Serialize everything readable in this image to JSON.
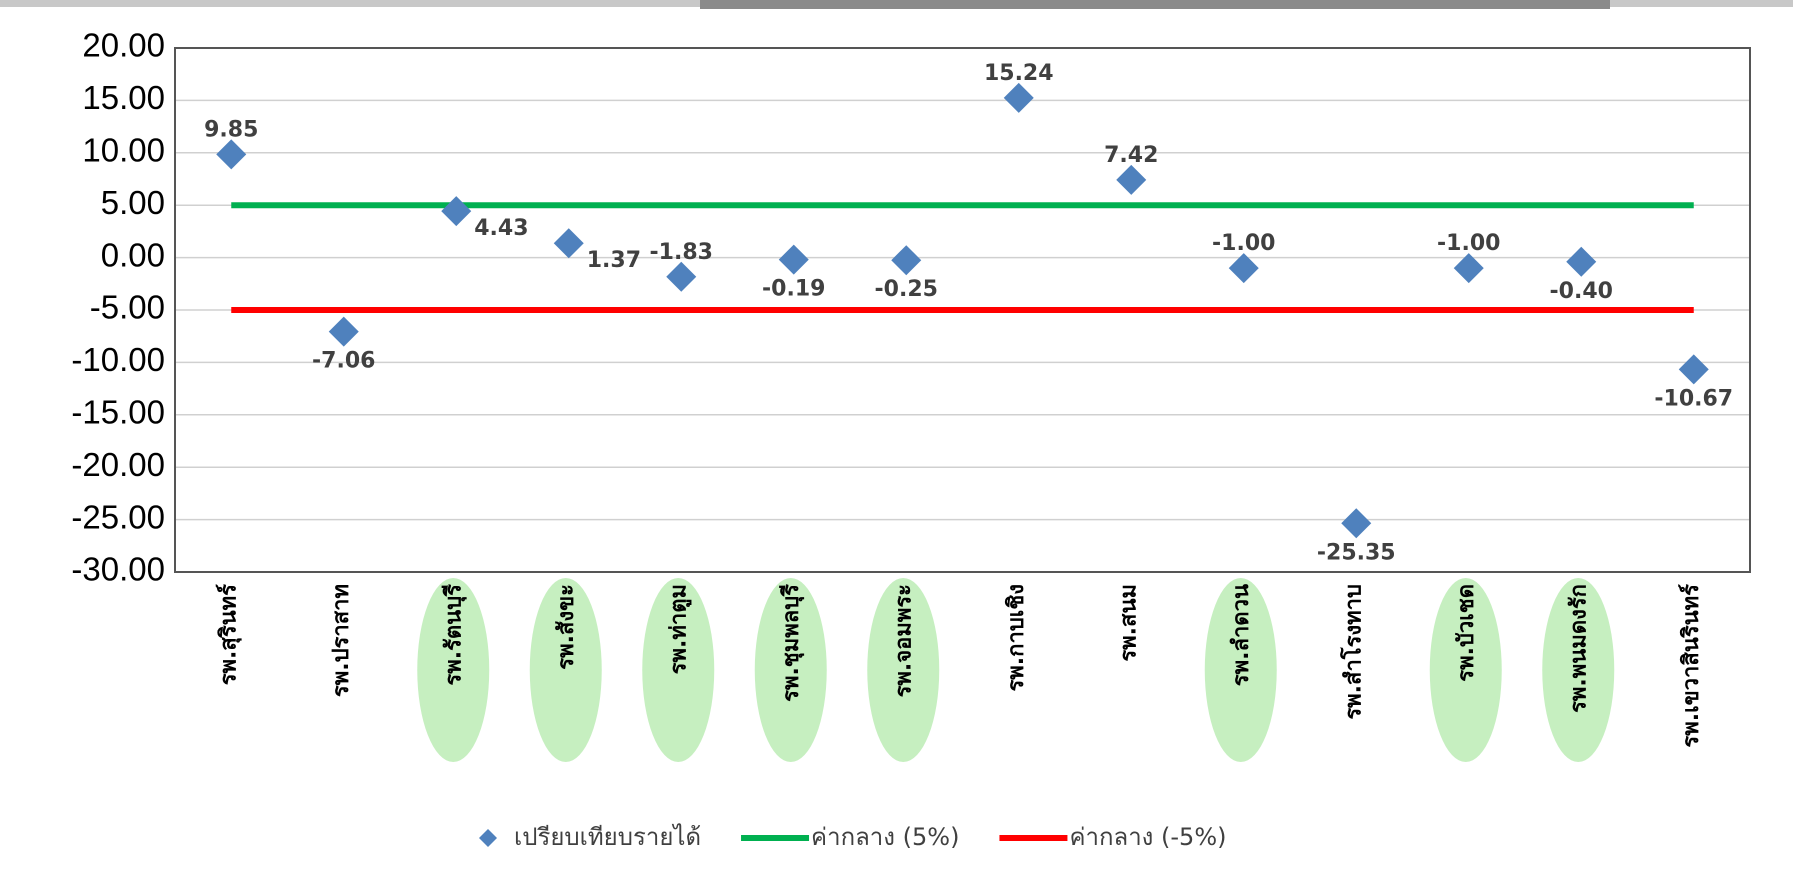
{
  "chart_data": {
    "type": "scatter",
    "categories": [
      "รพ.สุรินทร์",
      "รพ.ปราสาท",
      "รพ.รัตนบุรี",
      "รพ.สังขะ",
      "รพ.ท่าตูม",
      "รพ.ชุมพลบุรี",
      "รพ.จอมพระ",
      "รพ.กาบเชิง",
      "รพ.สนม",
      "รพ.ลำดวน",
      "รพ.สำโรงทาบ",
      "รพ.บัวเชด",
      "รพ.พนมดงรัก",
      "รพ.เขวาสินรินทร์"
    ],
    "series": [
      {
        "name": "เปรียบเทียบรายได้",
        "color": "#4f81bd",
        "marker": "diamond",
        "values": [
          9.85,
          -7.06,
          4.43,
          1.37,
          -1.83,
          -0.19,
          -0.25,
          15.24,
          7.42,
          -1.0,
          -25.35,
          -1.0,
          -0.4,
          -10.67
        ],
        "value_labels": [
          "9.85",
          "-7.06",
          "4.43",
          "1.37",
          "-1.83",
          "-0.19",
          "-0.25",
          "15.24",
          "7.42",
          "-1.00",
          "-25.35",
          "-1.00",
          "-0.40",
          "-10.67"
        ]
      },
      {
        "name": "ค่ากลาง (5%)",
        "color": "#00b050",
        "marker": "line",
        "values": [
          5,
          5,
          5,
          5,
          5,
          5,
          5,
          5,
          5,
          5,
          5,
          5,
          5,
          5
        ]
      },
      {
        "name": "ค่ากลาง (-5%)",
        "color": "#ff0000",
        "marker": "line",
        "values": [
          -5,
          -5,
          -5,
          -5,
          -5,
          -5,
          -5,
          -5,
          -5,
          -5,
          -5,
          -5,
          -5,
          -5
        ]
      }
    ],
    "ylim": [
      -30,
      20
    ],
    "yticks": [
      {
        "value": -30,
        "label": "-30.00"
      },
      {
        "value": -25,
        "label": "-25.00"
      },
      {
        "value": -20,
        "label": "-20.00"
      },
      {
        "value": -15,
        "label": "-15.00"
      },
      {
        "value": -10,
        "label": "-10.00"
      },
      {
        "value": -5,
        "label": "-5.00"
      },
      {
        "value": 0,
        "label": "0.00"
      },
      {
        "value": 5,
        "label": "5.00"
      },
      {
        "value": 10,
        "label": "10.00"
      },
      {
        "value": 15,
        "label": "15.00"
      },
      {
        "value": 20,
        "label": "20.00"
      }
    ],
    "grid": true,
    "legend": "bottom",
    "highlighted": [
      2,
      3,
      4,
      5,
      6,
      9,
      11,
      12
    ],
    "highlight_color": "#c6efc0"
  }
}
